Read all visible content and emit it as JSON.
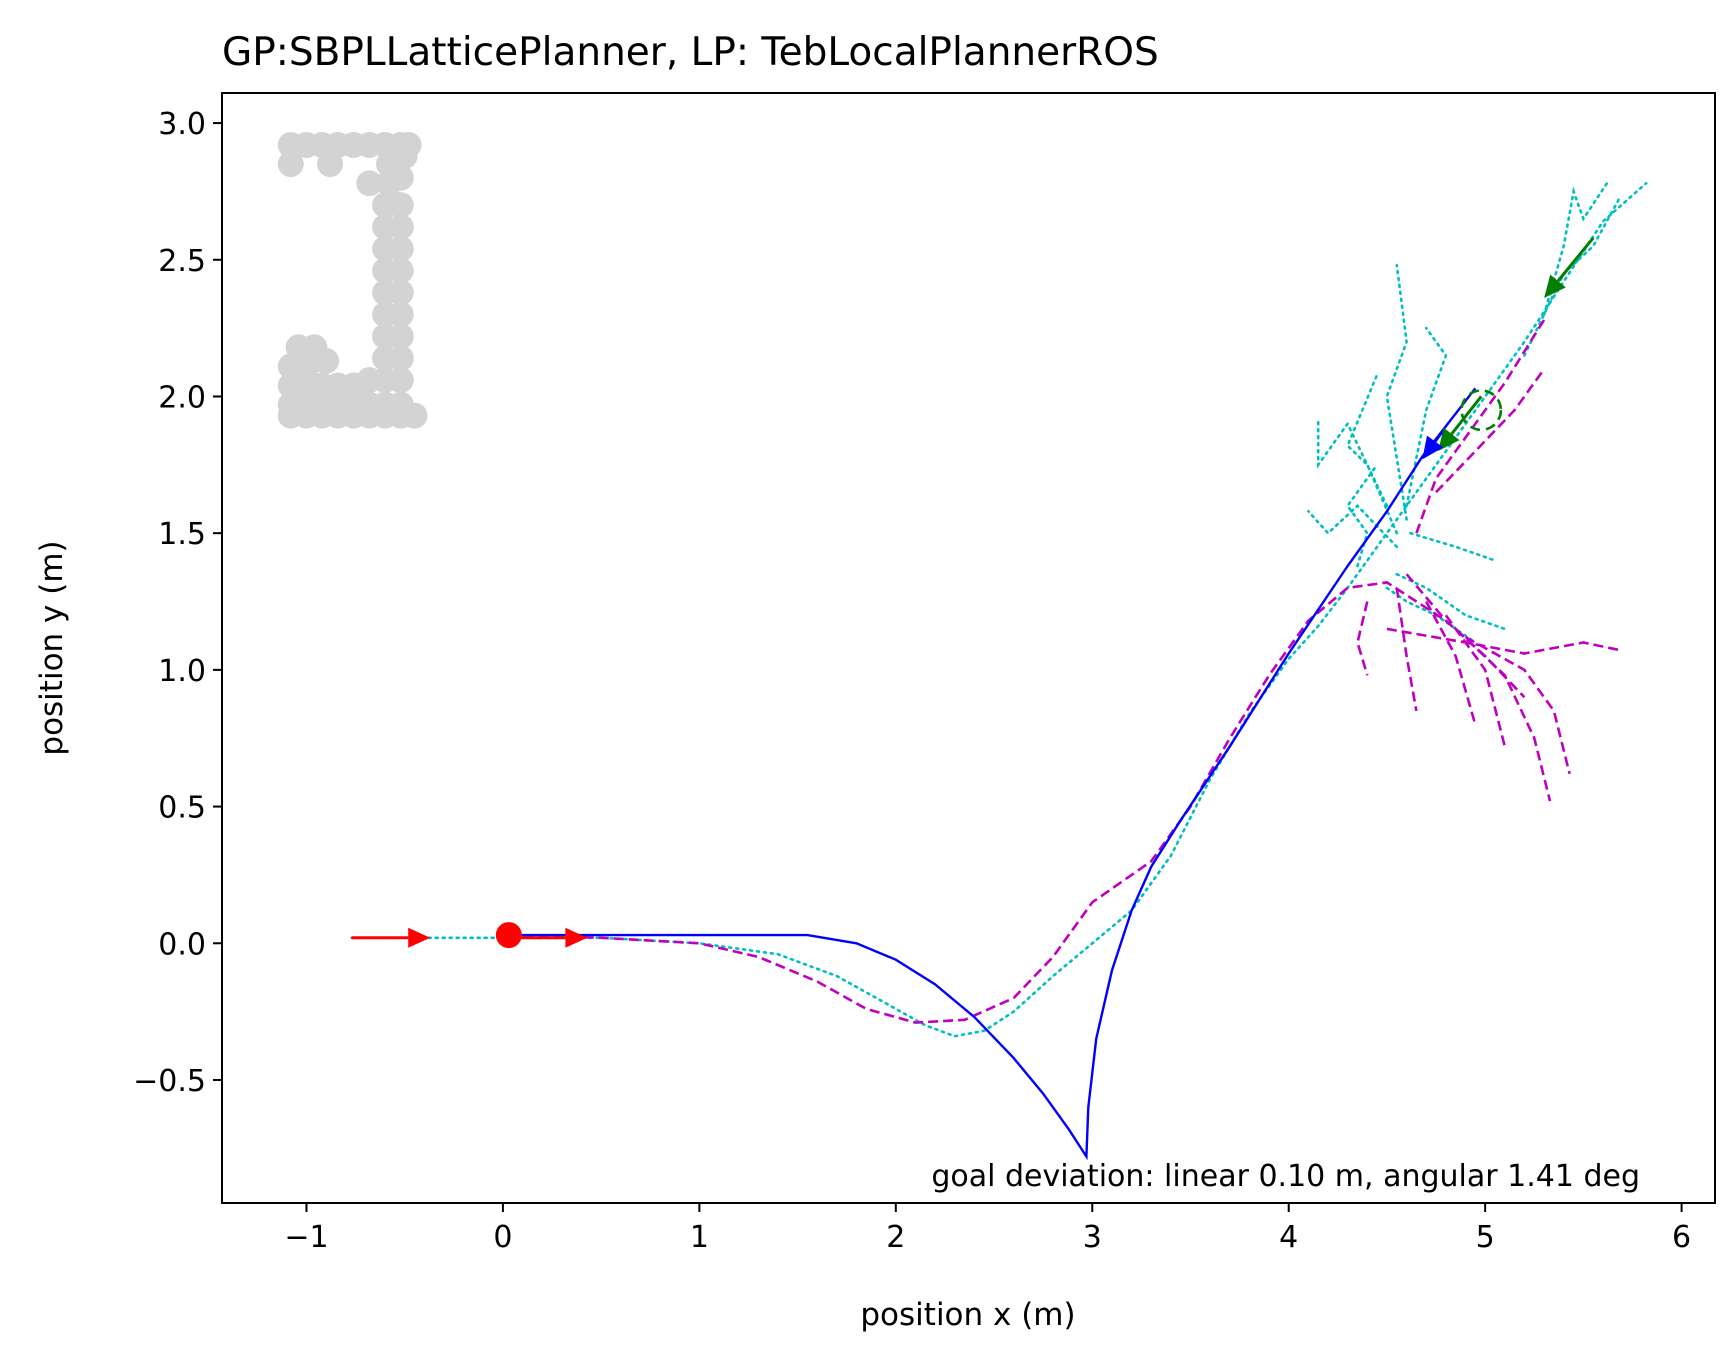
{
  "chart_data": {
    "type": "line",
    "title": "GP:SBPLLatticePlanner, LP: TebLocalPlannerROS",
    "xlabel": "position x (m)",
    "ylabel": "position y (m)",
    "xlim": [
      -1.43,
      6.17
    ],
    "ylim": [
      -0.95,
      3.11
    ],
    "xticks": [
      -1,
      0,
      1,
      2,
      3,
      4,
      5,
      6
    ],
    "xtick_labels": [
      "−1",
      "0",
      "1",
      "2",
      "3",
      "4",
      "5",
      "6"
    ],
    "yticks": [
      -0.5,
      0.0,
      0.5,
      1.0,
      1.5,
      2.0,
      2.5,
      3.0
    ],
    "ytick_labels": [
      "−0.5",
      "0.0",
      "0.5",
      "1.0",
      "1.5",
      "2.0",
      "2.5",
      "3.0"
    ],
    "grid": false,
    "annotation": "goal deviation: linear 0.10 m, angular 1.41 deg",
    "colors": {
      "global_plan": "#0000ff",
      "local_plans": "#bf00bf",
      "robot_path": "#00bfbf",
      "start_marker": "#ff0000",
      "goal_marker": "#007f00",
      "obstacles": "#d3d3d3"
    },
    "obstacles": [
      [
        -1.08,
        2.92
      ],
      [
        -1.0,
        2.92
      ],
      [
        -0.92,
        2.92
      ],
      [
        -0.84,
        2.92
      ],
      [
        -0.76,
        2.92
      ],
      [
        -0.68,
        2.92
      ],
      [
        -0.6,
        2.92
      ],
      [
        -0.52,
        2.92
      ],
      [
        -0.48,
        2.92
      ],
      [
        -1.08,
        2.85
      ],
      [
        -0.88,
        2.85
      ],
      [
        -0.58,
        2.85
      ],
      [
        -0.5,
        2.88
      ],
      [
        -0.68,
        2.78
      ],
      [
        -0.58,
        2.78
      ],
      [
        -0.52,
        2.8
      ],
      [
        -0.6,
        2.7
      ],
      [
        -0.52,
        2.7
      ],
      [
        -0.6,
        2.62
      ],
      [
        -0.52,
        2.62
      ],
      [
        -0.6,
        2.54
      ],
      [
        -0.52,
        2.54
      ],
      [
        -0.6,
        2.46
      ],
      [
        -0.52,
        2.46
      ],
      [
        -0.6,
        2.38
      ],
      [
        -0.52,
        2.38
      ],
      [
        -0.6,
        2.3
      ],
      [
        -0.52,
        2.3
      ],
      [
        -0.6,
        2.22
      ],
      [
        -0.52,
        2.22
      ],
      [
        -0.6,
        2.14
      ],
      [
        -0.52,
        2.14
      ],
      [
        -1.04,
        2.18
      ],
      [
        -0.96,
        2.18
      ],
      [
        -1.08,
        2.11
      ],
      [
        -1.0,
        2.11
      ],
      [
        -0.9,
        2.13
      ],
      [
        -1.08,
        2.04
      ],
      [
        -1.0,
        2.04
      ],
      [
        -0.92,
        2.04
      ],
      [
        -0.84,
        2.04
      ],
      [
        -0.76,
        2.04
      ],
      [
        -0.68,
        2.06
      ],
      [
        -0.6,
        2.06
      ],
      [
        -0.52,
        2.06
      ],
      [
        -1.08,
        1.97
      ],
      [
        -1.0,
        1.97
      ],
      [
        -0.92,
        1.97
      ],
      [
        -0.84,
        1.97
      ],
      [
        -0.76,
        1.97
      ],
      [
        -0.68,
        1.97
      ],
      [
        -0.6,
        1.97
      ],
      [
        -0.52,
        1.97
      ],
      [
        -1.08,
        1.93
      ],
      [
        -1.0,
        1.93
      ],
      [
        -0.92,
        1.93
      ],
      [
        -0.84,
        1.93
      ],
      [
        -0.76,
        1.93
      ],
      [
        -0.68,
        1.93
      ],
      [
        -0.6,
        1.93
      ],
      [
        -0.52,
        1.93
      ],
      [
        -0.45,
        1.93
      ]
    ],
    "global_plan": [
      [
        0.03,
        0.03
      ],
      [
        0.5,
        0.03
      ],
      [
        1.0,
        0.03
      ],
      [
        1.55,
        0.03
      ],
      [
        1.8,
        0.0
      ],
      [
        2.0,
        -0.06
      ],
      [
        2.2,
        -0.15
      ],
      [
        2.4,
        -0.27
      ],
      [
        2.6,
        -0.42
      ],
      [
        2.75,
        -0.55
      ],
      [
        2.88,
        -0.68
      ],
      [
        2.97,
        -0.78
      ],
      [
        2.98,
        -0.6
      ],
      [
        3.02,
        -0.35
      ],
      [
        3.1,
        -0.1
      ],
      [
        3.2,
        0.12
      ],
      [
        3.3,
        0.28
      ],
      [
        3.45,
        0.45
      ],
      [
        3.7,
        0.72
      ],
      [
        4.0,
        1.06
      ],
      [
        4.3,
        1.38
      ],
      [
        4.5,
        1.58
      ],
      [
        4.68,
        1.78
      ],
      [
        4.95,
        2.03
      ]
    ],
    "robot_path": [
      [
        -0.77,
        0.02
      ],
      [
        -0.4,
        0.02
      ],
      [
        0.0,
        0.02
      ],
      [
        0.5,
        0.02
      ],
      [
        1.0,
        0.0
      ],
      [
        1.4,
        -0.04
      ],
      [
        1.7,
        -0.12
      ],
      [
        1.95,
        -0.22
      ],
      [
        2.15,
        -0.3
      ],
      [
        2.3,
        -0.34
      ],
      [
        2.45,
        -0.32
      ],
      [
        2.6,
        -0.25
      ],
      [
        2.8,
        -0.12
      ],
      [
        3.0,
        0.0
      ],
      [
        3.2,
        0.12
      ],
      [
        3.4,
        0.32
      ],
      [
        3.6,
        0.6
      ],
      [
        3.8,
        0.84
      ],
      [
        4.0,
        1.04
      ],
      [
        4.15,
        1.16
      ],
      [
        4.3,
        1.3
      ],
      [
        4.45,
        1.45
      ],
      [
        4.6,
        1.6
      ],
      [
        4.8,
        1.8
      ],
      [
        5.0,
        2.0
      ],
      [
        5.2,
        2.2
      ],
      [
        5.4,
        2.42
      ],
      [
        5.6,
        2.64
      ],
      [
        5.82,
        2.78
      ]
    ],
    "robot_path_branches": [
      [
        [
          4.55,
          1.45
        ],
        [
          4.35,
          1.6
        ],
        [
          4.2,
          1.5
        ],
        [
          4.1,
          1.58
        ]
      ],
      [
        [
          4.55,
          1.5
        ],
        [
          4.4,
          1.75
        ],
        [
          4.3,
          1.82
        ],
        [
          4.45,
          2.08
        ]
      ],
      [
        [
          4.5,
          1.6
        ],
        [
          4.3,
          1.9
        ],
        [
          4.15,
          1.75
        ],
        [
          4.15,
          1.92
        ]
      ],
      [
        [
          4.6,
          1.55
        ],
        [
          4.5,
          2.0
        ],
        [
          4.6,
          2.2
        ],
        [
          4.55,
          2.48
        ]
      ],
      [
        [
          4.6,
          1.6
        ],
        [
          4.7,
          1.95
        ],
        [
          4.8,
          2.15
        ],
        [
          4.7,
          2.25
        ]
      ],
      [
        [
          4.55,
          1.35
        ],
        [
          4.7,
          1.3
        ],
        [
          4.9,
          1.2
        ],
        [
          5.1,
          1.15
        ]
      ],
      [
        [
          4.5,
          1.3
        ],
        [
          4.6,
          1.25
        ],
        [
          4.75,
          1.2
        ],
        [
          4.95,
          1.1
        ]
      ],
      [
        [
          4.62,
          1.5
        ],
        [
          4.85,
          1.45
        ],
        [
          5.05,
          1.4
        ]
      ],
      [
        [
          4.35,
          1.38
        ],
        [
          4.4,
          1.5
        ],
        [
          4.3,
          1.6
        ],
        [
          4.45,
          1.75
        ]
      ],
      [
        [
          5.3,
          2.3
        ],
        [
          5.4,
          2.55
        ],
        [
          5.45,
          2.75
        ],
        [
          5.5,
          2.65
        ],
        [
          5.62,
          2.78
        ]
      ],
      [
        [
          5.2,
          2.15
        ],
        [
          5.4,
          2.45
        ],
        [
          5.55,
          2.55
        ],
        [
          5.68,
          2.72
        ]
      ]
    ],
    "local_plans": [
      [
        [
          0.03,
          0.03
        ],
        [
          0.5,
          0.02
        ],
        [
          1.0,
          0.0
        ],
        [
          1.3,
          -0.05
        ],
        [
          1.6,
          -0.14
        ],
        [
          1.85,
          -0.24
        ],
        [
          2.1,
          -0.29
        ],
        [
          2.35,
          -0.28
        ],
        [
          2.6,
          -0.2
        ],
        [
          2.8,
          -0.05
        ],
        [
          3.0,
          0.15
        ],
        [
          3.3,
          0.3
        ],
        [
          3.5,
          0.5
        ],
        [
          3.7,
          0.75
        ],
        [
          3.9,
          0.98
        ],
        [
          4.1,
          1.18
        ],
        [
          4.3,
          1.3
        ],
        [
          4.5,
          1.32
        ],
        [
          4.65,
          1.25
        ],
        [
          4.8,
          1.18
        ]
      ],
      [
        [
          4.4,
          1.25
        ],
        [
          4.35,
          1.1
        ],
        [
          4.4,
          0.98
        ]
      ],
      [
        [
          4.55,
          1.3
        ],
        [
          4.6,
          1.05
        ],
        [
          4.65,
          0.85
        ]
      ],
      [
        [
          4.7,
          1.25
        ],
        [
          4.85,
          1.05
        ],
        [
          4.95,
          0.8
        ]
      ],
      [
        [
          4.8,
          1.2
        ],
        [
          5.0,
          1.0
        ],
        [
          5.1,
          0.72
        ]
      ],
      [
        [
          4.85,
          1.15
        ],
        [
          5.1,
          0.98
        ],
        [
          5.25,
          0.75
        ],
        [
          5.33,
          0.52
        ]
      ],
      [
        [
          4.9,
          1.12
        ],
        [
          5.2,
          1.0
        ],
        [
          5.35,
          0.85
        ],
        [
          5.43,
          0.62
        ]
      ],
      [
        [
          4.5,
          1.15
        ],
        [
          4.9,
          1.1
        ],
        [
          5.2,
          1.06
        ],
        [
          5.5,
          1.1
        ],
        [
          5.7,
          1.07
        ]
      ],
      [
        [
          4.6,
          1.35
        ],
        [
          4.8,
          1.18
        ],
        [
          5.0,
          1.05
        ],
        [
          5.2,
          0.9
        ]
      ],
      [
        [
          4.65,
          1.5
        ],
        [
          4.75,
          1.7
        ],
        [
          4.9,
          1.85
        ],
        [
          5.1,
          2.05
        ],
        [
          5.3,
          2.28
        ]
      ],
      [
        [
          4.75,
          1.65
        ],
        [
          4.95,
          1.8
        ],
        [
          5.15,
          1.95
        ],
        [
          5.3,
          2.1
        ]
      ]
    ],
    "start": {
      "x": 0.03,
      "y": 0.03
    },
    "start_arrows": [
      {
        "x": -0.77,
        "y": 0.02,
        "dx": 0.4,
        "dy": 0.0
      },
      {
        "x": 0.03,
        "y": 0.02,
        "dx": 0.4,
        "dy": 0.0
      }
    ],
    "goal_arrows": [
      {
        "x": 5.55,
        "y": 2.58,
        "dx": -0.25,
        "dy": -0.22
      },
      {
        "x": 4.98,
        "y": 2.0,
        "dx": -0.22,
        "dy": -0.2
      }
    ],
    "final_arrow": {
      "x": 4.78,
      "y": 1.87,
      "dx": -0.1,
      "dy": -0.1
    },
    "goal_circle": {
      "x": 4.98,
      "y": 1.95,
      "r": 0.1
    }
  }
}
